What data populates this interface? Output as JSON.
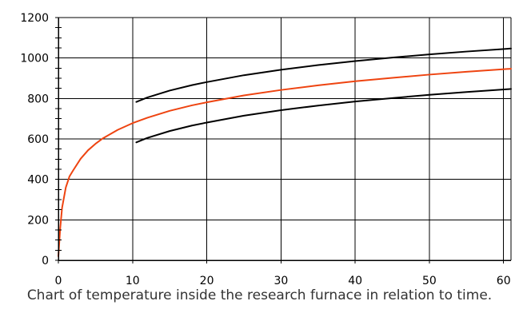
{
  "caption": "Chart of temperature inside the research furnace in relation to time.",
  "colors": {
    "standard_curve": "#ee4411",
    "tolerance_curves": "#000000",
    "grid": "#000000",
    "background": "#ffffff"
  },
  "chart_data": {
    "type": "line",
    "title": "",
    "xlabel": "",
    "ylabel": "",
    "xlim": [
      0,
      61
    ],
    "ylim": [
      0,
      1200
    ],
    "grid": true,
    "x_ticks": [
      0,
      10,
      20,
      30,
      40,
      50,
      60
    ],
    "x_tick_labels": [
      "0",
      "10",
      "20",
      "30",
      "40",
      "50",
      "60"
    ],
    "y_ticks": [
      0,
      200,
      400,
      600,
      800,
      1000,
      1200
    ],
    "y_tick_labels": [
      "0",
      "200",
      "400",
      "600",
      "800",
      "1000",
      "1200"
    ],
    "y_minor_step": 50,
    "series": [
      {
        "color": "#ee4411",
        "x": [
          0,
          0.25,
          0.5,
          1,
          1.5,
          2,
          3,
          4,
          5,
          6,
          8,
          10,
          12,
          15,
          18,
          20,
          25,
          30,
          35,
          40,
          45,
          50,
          55,
          61
        ],
        "y": [
          20,
          160,
          260,
          360,
          415,
          445,
          502,
          544,
          576,
          603,
          645,
          678,
          705,
          739,
          766,
          781,
          815,
          842,
          865,
          885,
          902,
          918,
          932,
          947
        ]
      },
      {
        "color": "#000000",
        "x": [
          10.5,
          12,
          15,
          18,
          20,
          25,
          30,
          35,
          40,
          45,
          50,
          55,
          61
        ],
        "y": [
          783,
          805,
          839,
          866,
          881,
          915,
          942,
          965,
          985,
          1002,
          1018,
          1032,
          1047
        ]
      },
      {
        "color": "#000000",
        "x": [
          10.5,
          12,
          15,
          18,
          20,
          25,
          30,
          35,
          40,
          45,
          50,
          55,
          61
        ],
        "y": [
          583,
          605,
          639,
          666,
          681,
          715,
          742,
          765,
          785,
          802,
          818,
          832,
          847
        ]
      }
    ]
  }
}
